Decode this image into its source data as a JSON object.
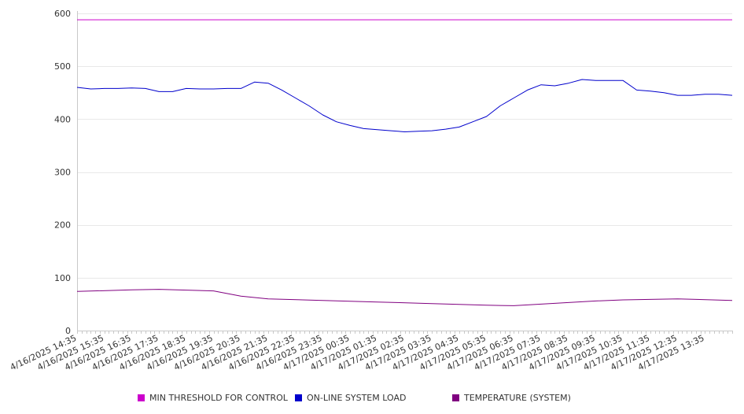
{
  "chart_data": {
    "type": "line",
    "title": "",
    "xlabel": "",
    "ylabel": "",
    "ylim": [
      0,
      600
    ],
    "yticks": [
      0,
      100,
      200,
      300,
      400,
      500,
      600
    ],
    "grid": true,
    "legend_placement": "bottom",
    "x_tick_labels": [
      "4/16/2025 14:35",
      "4/16/2025 15:35",
      "4/16/2025 16:35",
      "4/16/2025 17:35",
      "4/16/2025 18:35",
      "4/16/2025 19:35",
      "4/16/2025 20:35",
      "4/16/2025 21:35",
      "4/16/2025 22:35",
      "4/16/2025 23:35",
      "4/17/2025 00:35",
      "4/17/2025 01:35",
      "4/17/2025 02:35",
      "4/17/2025 03:35",
      "4/17/2025 04:35",
      "4/17/2025 05:35",
      "4/17/2025 06:35",
      "4/17/2025 07:35",
      "4/17/2025 08:35",
      "4/17/2025 09:35",
      "4/17/2025 10:35",
      "4/17/2025 11:35",
      "4/17/2025 12:35",
      "4/17/2025 13:35"
    ],
    "x_range": [
      "4/16/2025 14:35",
      "4/17/2025 14:35"
    ],
    "series": [
      {
        "name": "MIN THRESHOLD FOR CONTROL",
        "color": "#cc00cc",
        "x": [
          "4/16/2025 14:35",
          "4/17/2025 14:35"
        ],
        "y": [
          588,
          588
        ]
      },
      {
        "name": "ON-LINE SYSTEM LOAD",
        "color": "#0000cc",
        "x": [
          "4/16/2025 14:35",
          "4/16/2025 15:05",
          "4/16/2025 15:35",
          "4/16/2025 16:05",
          "4/16/2025 16:35",
          "4/16/2025 17:05",
          "4/16/2025 17:35",
          "4/16/2025 18:05",
          "4/16/2025 18:35",
          "4/16/2025 19:05",
          "4/16/2025 19:35",
          "4/16/2025 20:05",
          "4/16/2025 20:35",
          "4/16/2025 21:05",
          "4/16/2025 21:35",
          "4/16/2025 22:05",
          "4/16/2025 22:35",
          "4/16/2025 23:05",
          "4/16/2025 23:35",
          "4/17/2025 00:05",
          "4/17/2025 00:35",
          "4/17/2025 01:05",
          "4/17/2025 01:35",
          "4/17/2025 02:05",
          "4/17/2025 02:35",
          "4/17/2025 03:05",
          "4/17/2025 03:35",
          "4/17/2025 04:05",
          "4/17/2025 04:35",
          "4/17/2025 05:05",
          "4/17/2025 05:35",
          "4/17/2025 06:05",
          "4/17/2025 06:35",
          "4/17/2025 07:05",
          "4/17/2025 07:35",
          "4/17/2025 08:05",
          "4/17/2025 08:35",
          "4/17/2025 09:05",
          "4/17/2025 09:35",
          "4/17/2025 10:05",
          "4/17/2025 10:35",
          "4/17/2025 11:05",
          "4/17/2025 11:35",
          "4/17/2025 12:05",
          "4/17/2025 12:35",
          "4/17/2025 13:05",
          "4/17/2025 13:35",
          "4/17/2025 14:05",
          "4/17/2025 14:35"
        ],
        "y": [
          460,
          457,
          458,
          458,
          459,
          458,
          452,
          452,
          458,
          457,
          457,
          458,
          458,
          470,
          468,
          455,
          440,
          425,
          408,
          395,
          388,
          382,
          380,
          378,
          376,
          377,
          378,
          381,
          385,
          395,
          405,
          425,
          440,
          455,
          465,
          463,
          468,
          475,
          473,
          473,
          473,
          455,
          453,
          450,
          445,
          445,
          447,
          447,
          445
        ]
      },
      {
        "name": "TEMPERATURE (SYSTEM)",
        "color": "#800080",
        "x": [
          "4/16/2025 14:35",
          "4/16/2025 16:35",
          "4/16/2025 17:35",
          "4/16/2025 19:35",
          "4/16/2025 20:35",
          "4/16/2025 21:35",
          "4/16/2025 23:35",
          "4/17/2025 01:35",
          "4/17/2025 03:35",
          "4/17/2025 05:35",
          "4/17/2025 06:35",
          "4/17/2025 07:35",
          "4/17/2025 08:35",
          "4/17/2025 09:35",
          "4/17/2025 10:35",
          "4/17/2025 12:35",
          "4/17/2025 14:35"
        ],
        "y": [
          74,
          77,
          78,
          75,
          65,
          60,
          57,
          54,
          51,
          48,
          47,
          50,
          53,
          56,
          58,
          60,
          57
        ]
      }
    ]
  }
}
